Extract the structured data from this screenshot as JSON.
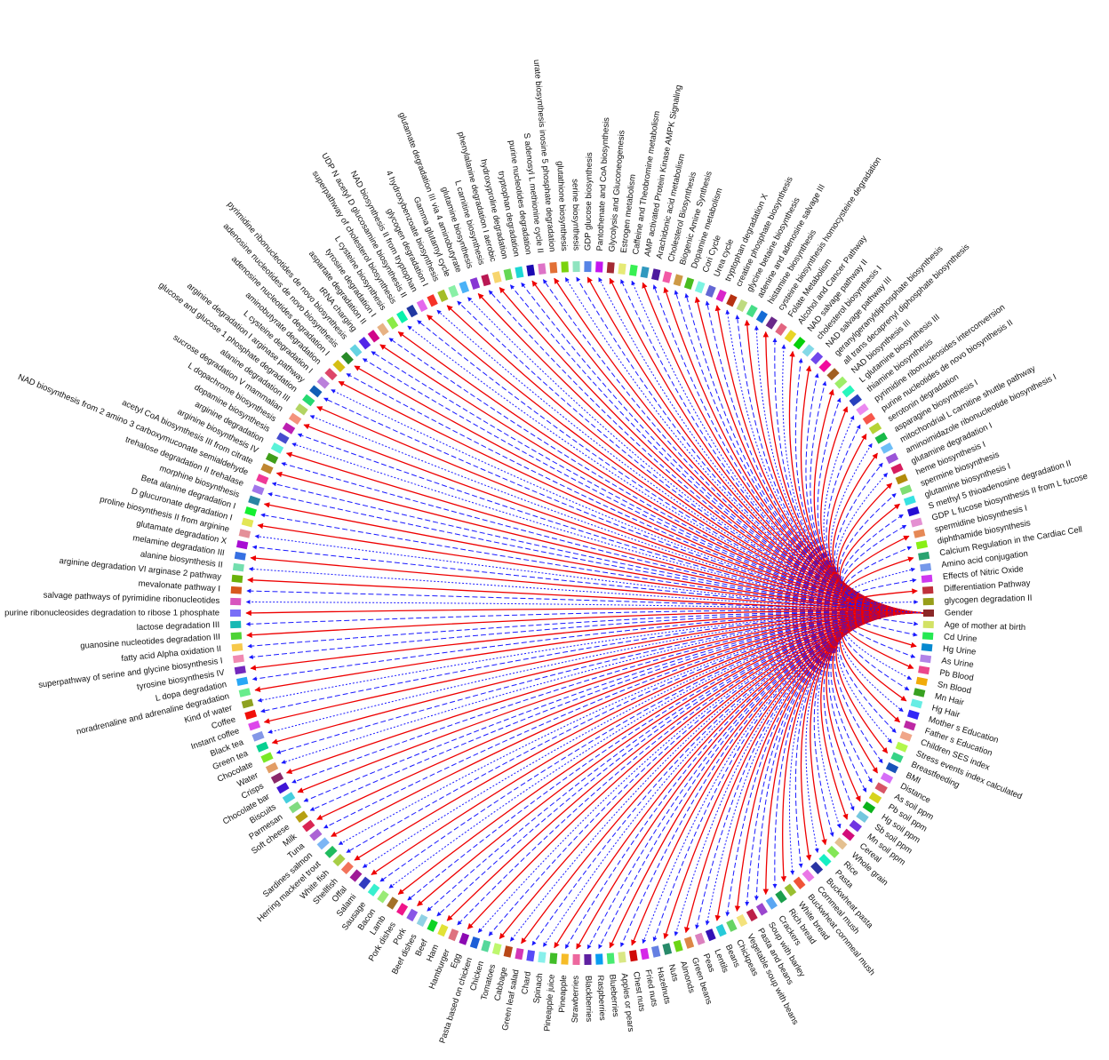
{
  "nodes": [
    "Gender",
    "Age of mother at birth",
    "Cd Urine",
    "Hg Urine",
    "As Urine",
    "Pb Blood",
    "Sn Blood",
    "Mn Hair",
    "Hg Hair",
    "Mother s Education",
    "Father s Education",
    "Children SES index",
    "Stress events index calculated",
    "Breastfeeding",
    "BMI",
    "Distance",
    "As soil ppm",
    "Pb soil ppm",
    "Hg soil ppm",
    "Sb soil ppm",
    "Mn soil ppm",
    "Cereal",
    "Whole grain",
    "Rice",
    "Pasta",
    "Buckwheat pasta",
    "Cornmeal mush",
    "Buckwheat cornmeal mush",
    "White bread",
    "Rich bread",
    "Crackers",
    "Soup with barley",
    "Pasta and beans",
    "Vegetable soup with beans",
    "Chickpeas",
    "Beans",
    "Lentils",
    "Peas",
    "Green beans",
    "Almonds",
    "Nuts",
    "Hazelnuts",
    "Fried nuts",
    "Chest nuts",
    "Apples or pears",
    "Blueberries",
    "Raspberries",
    "Blackberries",
    "Strawberries",
    "Pineapple",
    "Pineapple juice",
    "Spinach",
    "Chard",
    "Green leaf salad",
    "Cabbage",
    "Tomatoes",
    "Chicken",
    "Pasta based on chicken",
    "Egg",
    "Hamburger",
    "Ham",
    "Beef",
    "Beef dishes",
    "Pork",
    "Pork dishes",
    "Lamb",
    "Bacon",
    "Sausage",
    "Salami",
    "Offal",
    "Shellfish",
    "White fish",
    "Herring mackerel trout",
    "Sardines salmon",
    "Tuna",
    "Milk",
    "Soft cheese",
    "Parmesan",
    "Biscuits",
    "Chocolate bar",
    "Crisps",
    "Water",
    "Chocolate",
    "Green tea",
    "Black tea",
    "Instant coffee",
    "Coffee",
    "Kind of water",
    "noradrenaline and adrenaline degradation",
    "L dopa degradation",
    "tyrosine biosynthesis IV",
    "superpathway of serine and glycine biosynthesis I",
    "fatty acid Alpha oxidation II",
    "guanosine nucleotides degradation III",
    "lactose degradation III",
    "purine ribonucleosides degradation to ribose 1 phosphate",
    "salvage pathways of pyrimidine ribonucleotides",
    "mevalonate pathway I",
    "arginine degradation VI arginase 2 pathway",
    "alanine biosynthesis II",
    "melamine degradation III",
    "glutamate degradation X",
    "proline biosynthesis II from arginine",
    "D glucuronate degradation I",
    "Beta alanine degradation I",
    "morphine biosynthesis",
    "trehalose degradation II trehalase",
    "NAD biosynthesis from 2 amino 3 carboxymuconate semialdehyde",
    "acetyl CoA biosynthesis III from citrate",
    "arginine biosynthesis IV",
    "arginine degradation",
    "dopamine biosynthesis",
    "L dopachrome biosynthesis",
    "sucrose degradation V mammalian",
    "alanine degradation III",
    "glucose and glucose 1 phosphate degradation",
    "arginine degradation I arginase pathway",
    "L cysteine degradation I",
    "aminobutyrate degradation",
    "adenosine nucleotides degradation I",
    "adenosine nucleotides de novo biosynthesis",
    "pyrimidine ribonucleotides de novo biosynthesis",
    "tRNA charging",
    "aspartate degradation II",
    "tyrosine degradation I",
    "L cysteine biosynthesis",
    "superpathway of cholesterol biosynthesis",
    "UDP N acetyl D glucosamine biosynthesis II",
    "NAD biosynthesis II from tryptophan",
    "glycogen degradation I",
    "4 hydroxybenzoate biosynthesis",
    "Gamma glutamyl cycle",
    "glutamate degradation III via 4 aminobutyrate",
    "glutamine biosynthesis",
    "L carnitine biosynthesis",
    "phenylalanine degradation I aerobic",
    "hydroxyproline degradation",
    "tryptophan degradation",
    "purine nucleotides degradation",
    "S adenosyl L methionine cycle II",
    "urate biosynthesis inosine 5 phosphate degradation",
    "glutathione biosynthesis",
    "serine biosynthesis",
    "GDP glucose biosynthesis",
    "Pantothenate and CoA biosynthesis",
    "Glycolysis and Gluconeogenesis",
    "Estrogen metabolism",
    "Caffeine and Theobromine metabolism",
    "AMP activated Protein Kinase AMPK Signaling",
    "Arachidonic acid metabolism",
    "Cholesterol Biosynthesis",
    "Biogenic Amine Synthesis",
    "Dopamine metabolism",
    "Cori Cycle",
    "Urea cycle",
    "tryptophan degradation X",
    "creatine phosphate biosynthesis",
    "glycine betaine biosynthesis",
    "adenine and adenosine salvage III",
    "histamine biosynthesis",
    "cysteine biosynthesis homocysteine degradation",
    "Folate Metabolism",
    "Alcohol and Cancer Pathway",
    "NAD salvage pathway II",
    "cholesterol biosynthesis I",
    "NAD salvage pathway III",
    "geranylgeranyldiphosphate biosynthesis",
    "all trans decaprenyl diphosphate biosynthesis",
    "NAD biosynthesis III",
    "L glutamine biosynthesis III",
    "thiamine biosynthesis",
    "pyrimidine ribonucleosides interconversion",
    "purine nucleotides de novo biosynthesis II",
    "serotonin degradation",
    "asparagine biosynthesis I",
    "mitochondrial L carnitine shuttle pathway",
    "aminoimidazole ribonucleotide biosynthesis I",
    "glutamine degradation I",
    "heme biosynthesis I",
    "spermine biosynthesis",
    "glutamine biosynthesis I",
    "S methyl 5 thioadenosine degradation II",
    "GDP L fucose biosynthesis II from L fucose",
    "spermidine biosynthesis I",
    "diphthamide biosynthesis",
    "Calcium Regulation in the Cardiac Cell",
    "Amino acid conjugation",
    "Effects of Nitric Oxide",
    "Differentiation Pathway",
    "glycogen degradation II"
  ]
}
